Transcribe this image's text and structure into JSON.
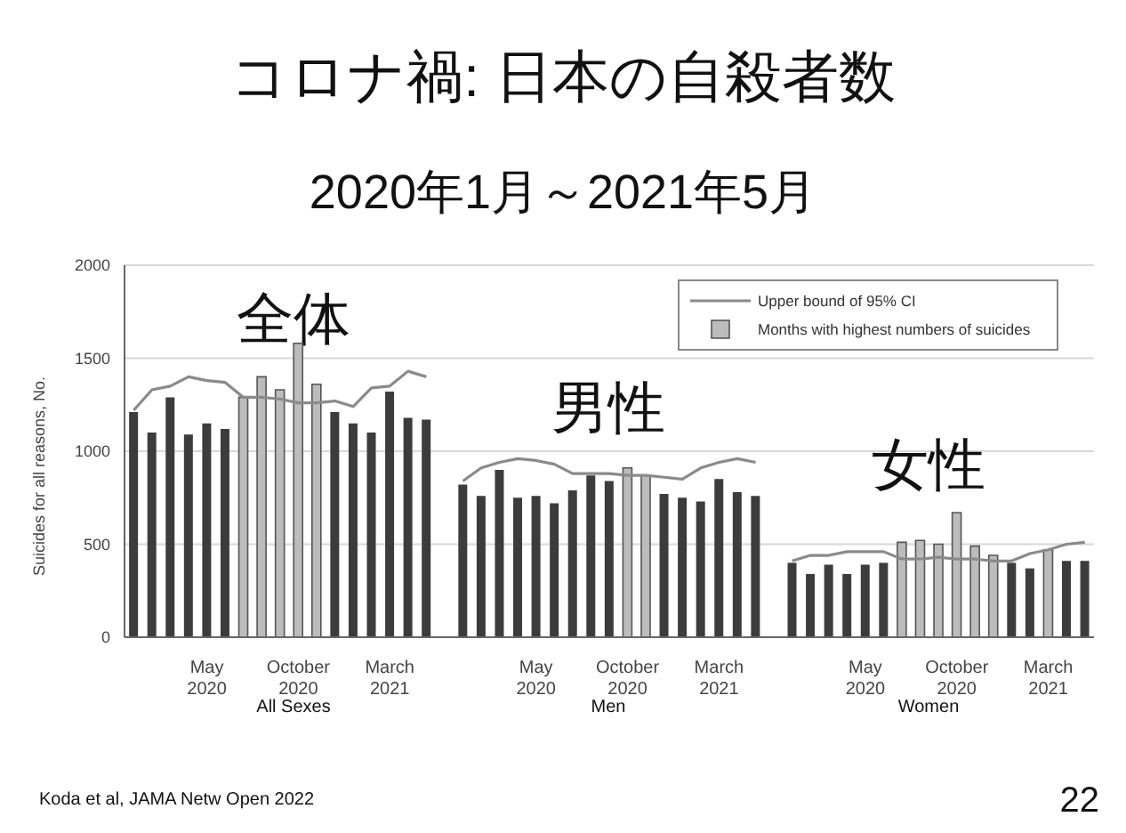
{
  "chart_data": {
    "type": "bar",
    "title": "コロナ禍: 日本の自殺者数",
    "subtitle": "2020年1月～2021年5月",
    "ylabel": "Suicides for all reasons, No.",
    "categories": [
      null,
      null,
      null,
      null,
      "May\n2020",
      null,
      null,
      null,
      null,
      "October\n2020",
      null,
      null,
      null,
      null,
      "March\n2021",
      null,
      null,
      null,
      null,
      null,
      null,
      null,
      "May\n2020",
      null,
      null,
      null,
      null,
      "October\n2020",
      null,
      null,
      null,
      null,
      "March\n2021",
      null,
      null,
      null,
      null,
      null,
      null,
      null,
      "May\n2020",
      null,
      null,
      null,
      null,
      "October\n2020",
      null,
      null,
      null,
      null,
      "March\n2021",
      null,
      null
    ],
    "series": [
      {
        "type": "line",
        "name": "Upper bound of 95% CI",
        "color": "#8a8a8a",
        "values": [
          1220,
          1330,
          1350,
          1400,
          1380,
          1370,
          1290,
          1290,
          1280,
          1260,
          1260,
          1270,
          1240,
          1340,
          1350,
          1430,
          1400,
          null,
          840,
          910,
          940,
          960,
          950,
          930,
          880,
          880,
          880,
          870,
          870,
          860,
          850,
          910,
          940,
          960,
          940,
          null,
          410,
          440,
          440,
          460,
          460,
          460,
          420,
          420,
          430,
          420,
          420,
          410,
          410,
          450,
          470,
          500,
          510
        ]
      },
      {
        "name": "Months with highest numbers of suicides",
        "color": "#bcbcbc",
        "values": [
          null,
          null,
          null,
          null,
          null,
          null,
          1290,
          1400,
          1330,
          1580,
          1360,
          null,
          null,
          null,
          null,
          null,
          null,
          null,
          null,
          null,
          null,
          null,
          null,
          null,
          null,
          null,
          null,
          910,
          870,
          null,
          null,
          null,
          null,
          null,
          null,
          null,
          null,
          null,
          null,
          null,
          null,
          null,
          510,
          520,
          500,
          670,
          490,
          440,
          null,
          null,
          470,
          null,
          null
        ]
      },
      {
        "color": "#3c3c3c",
        "values": [
          1210,
          1100,
          1290,
          1090,
          1150,
          1120,
          null,
          null,
          null,
          null,
          null,
          1210,
          1150,
          1100,
          1320,
          1180,
          1170,
          null,
          820,
          760,
          900,
          750,
          760,
          720,
          790,
          870,
          840,
          null,
          null,
          770,
          750,
          730,
          850,
          780,
          760,
          null,
          400,
          340,
          390,
          340,
          390,
          400,
          null,
          null,
          null,
          null,
          null,
          null,
          400,
          370,
          null,
          410,
          410
        ]
      }
    ],
    "stacked": true,
    "ylim": [
      0,
      2000
    ],
    "yticks": [
      0,
      500,
      1000,
      1500,
      2000
    ],
    "grid": "y",
    "legend": "top right",
    "marker": "none",
    "annotations": [
      "全体",
      "男性",
      "女性",
      "All Sexes",
      "Men",
      "Women",
      "Koda et al, JAMA Netw Open 2022",
      "22"
    ]
  }
}
